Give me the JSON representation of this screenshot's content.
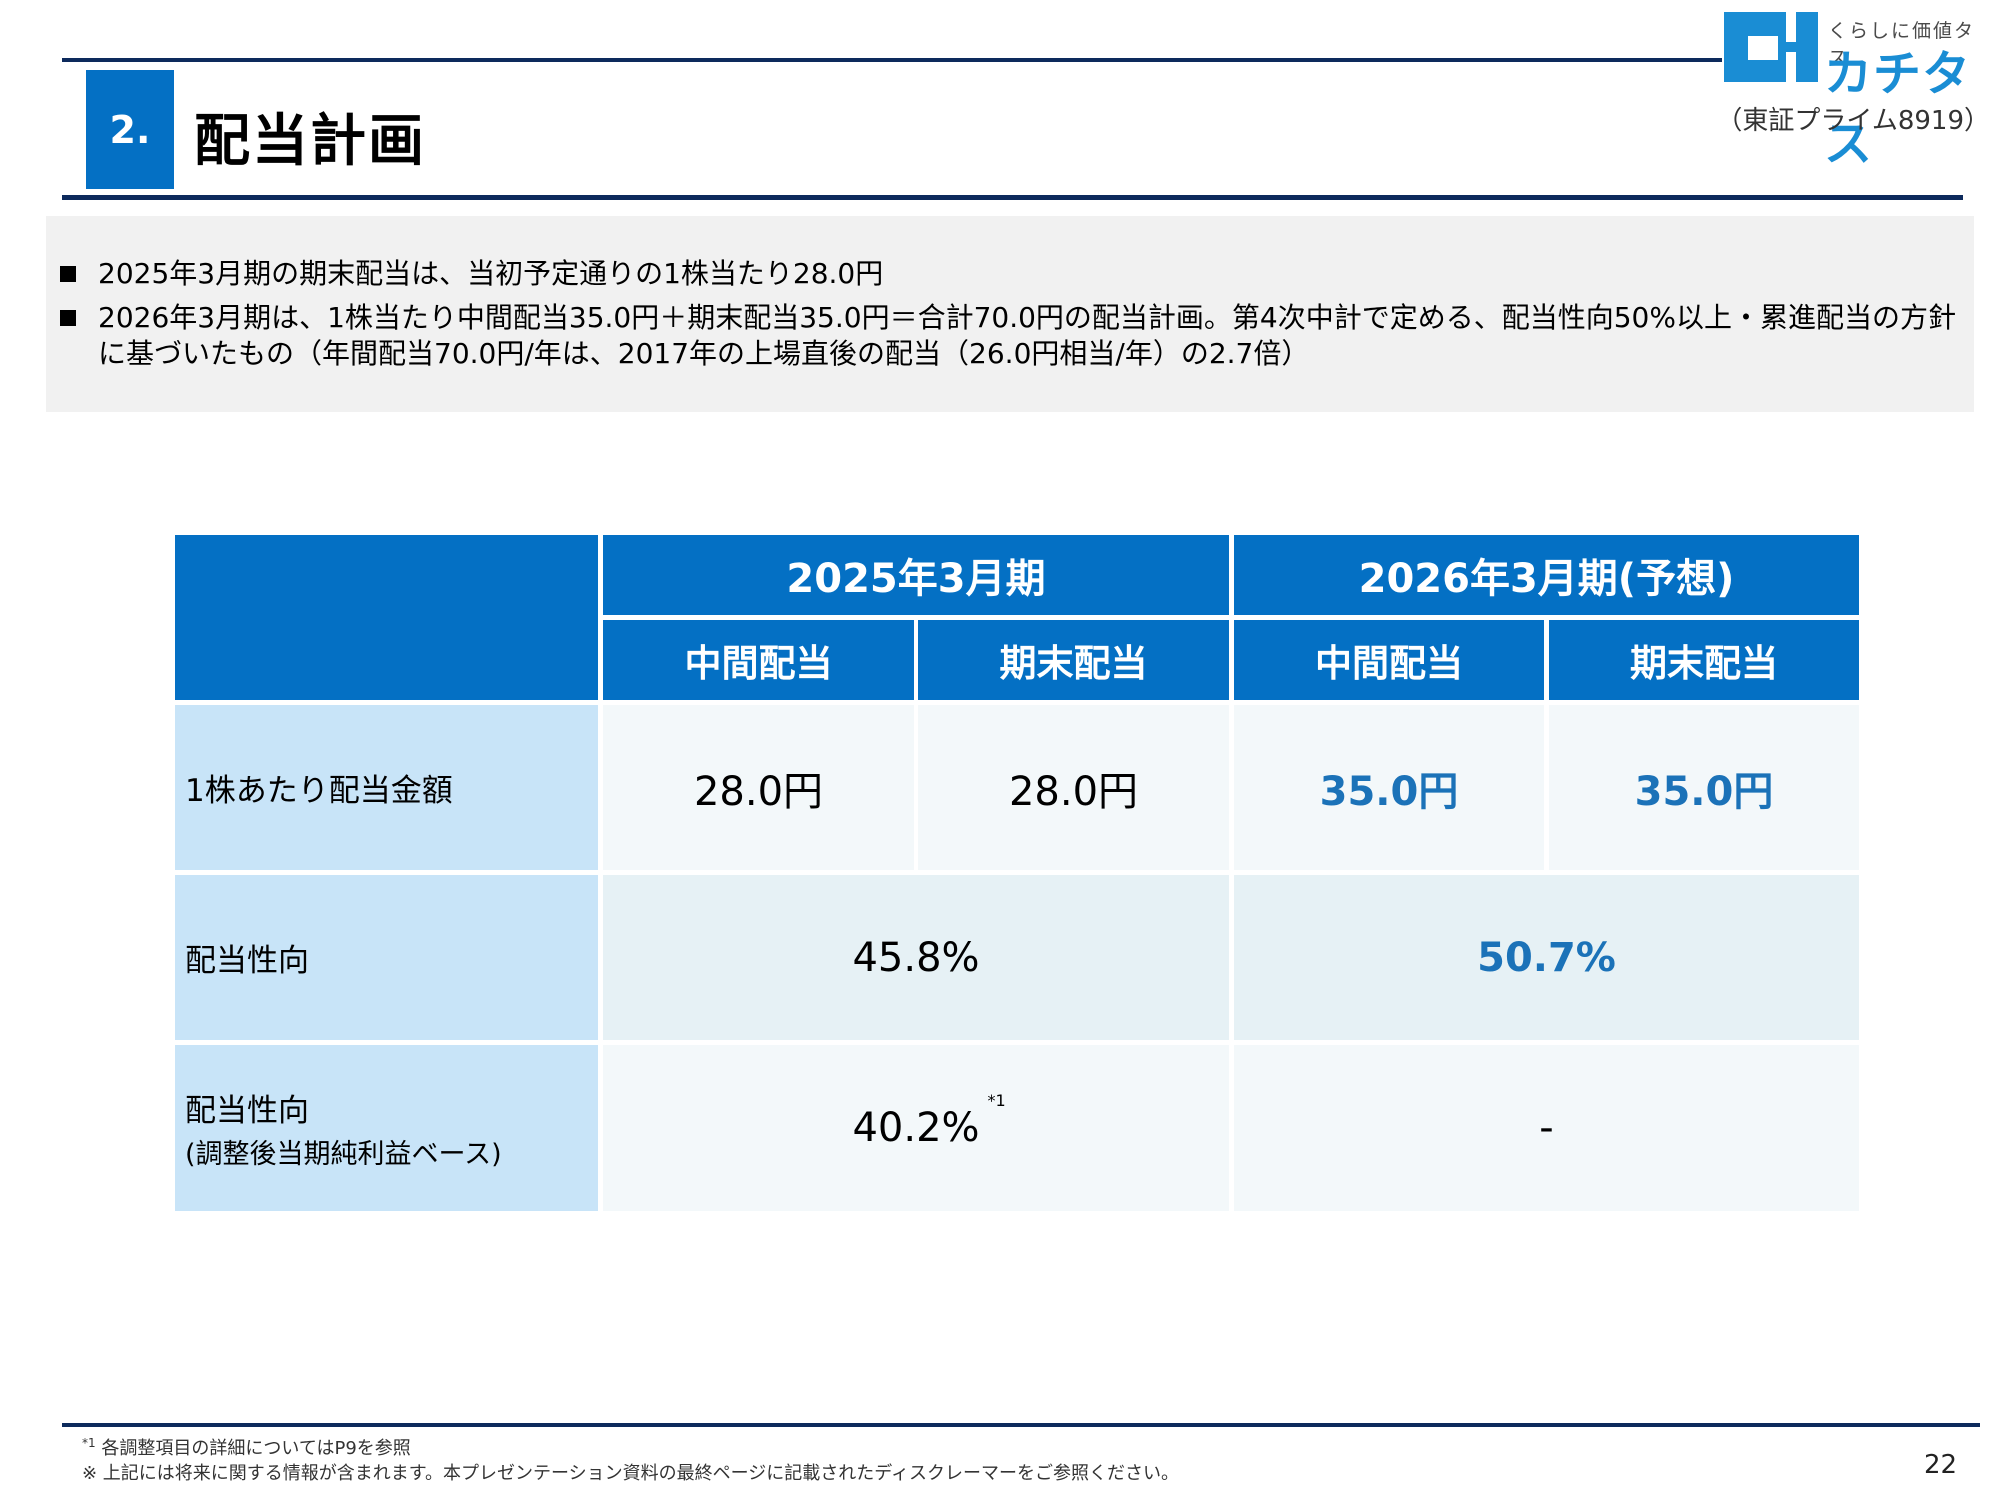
{
  "header": {
    "section_number": "2.",
    "title": "配当計画"
  },
  "logo": {
    "tagline": "くらしに価値タス",
    "name": "カチタス",
    "market": "（東証プライム8919）",
    "brand_color": "#1a8dd4"
  },
  "summary": {
    "bullets": [
      "2025年3月期の期末配当は、当初予定通りの1株当たり28.0円",
      "2026年3月期は、1株当たり中間配当35.0円＋期末配当35.0円＝合計70.0円の配当計画。第4次中計で定める、配当性向50%以上・累進配当の方針に基づいたもの（年間配当70.0円/年は、2017年の上場直後の配当（26.0円相当/年）の2.7倍）"
    ]
  },
  "table": {
    "periods": [
      "2025年3月期",
      "2026年3月期(予想)"
    ],
    "subheaders": [
      "中間配当",
      "期末配当",
      "中間配当",
      "期末配当"
    ],
    "rows": {
      "dps": {
        "label": "1株あたり配当金額",
        "values": [
          "28.0円",
          "28.0円",
          "35.0円",
          "35.0円"
        ]
      },
      "payout": {
        "label": "配当性向",
        "values": [
          "45.8%",
          "50.7%"
        ]
      },
      "payout_adj": {
        "label": "配当性向",
        "label_sub": "(調整後当期純利益ベース)",
        "values": [
          "40.2%",
          "-"
        ],
        "note_mark": "*1"
      }
    },
    "colors": {
      "header": "#0470c4",
      "row_head": "#c8e4f8",
      "forecast_text": "#1b72b8"
    }
  },
  "footer": {
    "note_mark": "*1",
    "note": "各調整項目の詳細についてはP9を参照",
    "disclaimer": "※ 上記には将来に関する情報が含まれます。本プレゼンテーション資料の最終ページに記載されたディスクレーマーをご参照ください。",
    "page_number": "22"
  }
}
